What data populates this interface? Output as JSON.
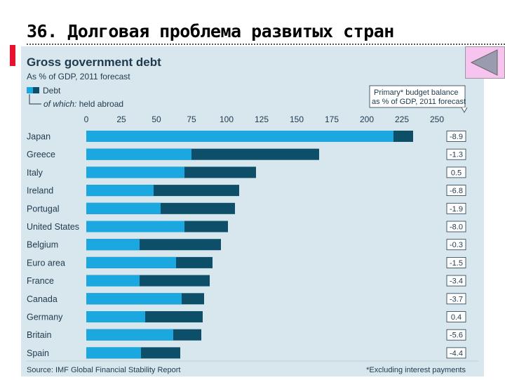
{
  "slide": {
    "title": "36. Долговая проблема развитых стран"
  },
  "chart_data": {
    "type": "bar",
    "title": "Gross government debt",
    "subtitle": "As % of GDP, 2011 forecast",
    "legend": {
      "debt": "Debt",
      "abroad_prefix": "of which:",
      "abroad_suffix": " held abroad",
      "placement": "top-left"
    },
    "categories": [
      "Japan",
      "Greece",
      "Italy",
      "Ireland",
      "Portugal",
      "United States",
      "Belgium",
      "Euro area",
      "France",
      "Canada",
      "Germany",
      "Britain",
      "Spain"
    ],
    "series": [
      {
        "name": "Debt",
        "values": [
          233,
          166,
          121,
          109,
          106,
          101,
          96,
          90,
          88,
          84,
          83,
          82,
          67
        ]
      },
      {
        "name": "held abroad",
        "values": [
          219,
          75,
          70,
          48,
          53,
          70,
          38,
          64,
          38,
          68,
          42,
          62,
          39
        ]
      }
    ],
    "xlim": [
      0,
      250
    ],
    "xticks": [
      "0",
      "25",
      "50",
      "75",
      "100",
      "125",
      "150",
      "175",
      "200",
      "225",
      "250"
    ],
    "callout": {
      "line1": "Primary* budget balance",
      "line2": "as % of GDP, 2011 forecast"
    },
    "primary_balance": [
      "-8.9",
      "-1.3",
      "0.5",
      "-6.8",
      "-1.9",
      "-8.0",
      "-0.3",
      "-1.5",
      "-3.4",
      "-3.7",
      "0.4",
      "-5.6",
      "-4.4"
    ],
    "source": "Source: IMF Global Financial Stability Report",
    "footnote": "*Excluding interest payments",
    "grid": false,
    "colors": {
      "debt": "#0d4e68",
      "abroad": "#1ba7e0",
      "panel": "#d8e6ee",
      "text": "#1e3a4c"
    }
  }
}
